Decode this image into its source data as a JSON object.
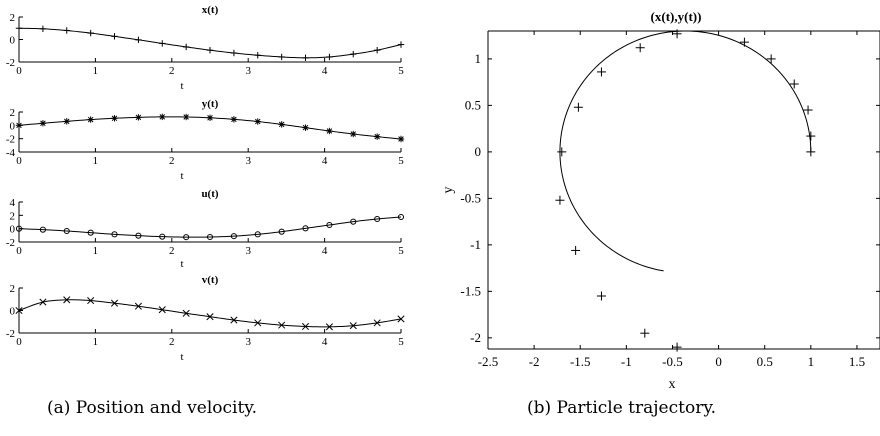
{
  "captions": {
    "left": "(a) Position and velocity.",
    "right": "(b) Particle trajectory."
  },
  "chart_data": [
    {
      "type": "line",
      "title": "x(t)",
      "xlabel": "t",
      "ylabel": "",
      "xlim": [
        0,
        5
      ],
      "ylim": [
        -2,
        2
      ],
      "xticks": [
        0,
        1,
        2,
        3,
        4,
        5
      ],
      "yticks": [
        -2,
        0,
        2
      ],
      "marker": "plus",
      "x": [
        0,
        0.313,
        0.625,
        0.938,
        1.25,
        1.563,
        1.875,
        2.188,
        2.5,
        2.813,
        3.125,
        3.438,
        3.75,
        4.063,
        4.375,
        4.688,
        5.0
      ],
      "values": [
        1.0,
        0.95,
        0.8,
        0.57,
        0.28,
        -0.03,
        -0.35,
        -0.66,
        -0.95,
        -1.2,
        -1.4,
        -1.55,
        -1.63,
        -1.55,
        -1.3,
        -0.95,
        -0.45
      ]
    },
    {
      "type": "line",
      "title": "y(t)",
      "xlabel": "t",
      "ylabel": "",
      "xlim": [
        0,
        5
      ],
      "ylim": [
        -4,
        2
      ],
      "xticks": [
        0,
        1,
        2,
        3,
        4,
        5
      ],
      "yticks": [
        -4,
        -2,
        0,
        2
      ],
      "marker": "star",
      "x": [
        0,
        0.313,
        0.625,
        0.938,
        1.25,
        1.563,
        1.875,
        2.188,
        2.5,
        2.813,
        3.125,
        3.438,
        3.75,
        4.063,
        4.375,
        4.688,
        5.0
      ],
      "values": [
        0.0,
        0.31,
        0.6,
        0.86,
        1.06,
        1.2,
        1.27,
        1.25,
        1.13,
        0.9,
        0.57,
        0.14,
        -0.35,
        -0.85,
        -1.3,
        -1.7,
        -2.05
      ]
    },
    {
      "type": "line",
      "title": "u(t)",
      "xlabel": "t",
      "ylabel": "",
      "xlim": [
        0,
        5
      ],
      "ylim": [
        -2,
        4
      ],
      "xticks": [
        0,
        1,
        2,
        3,
        4,
        5
      ],
      "yticks": [
        -2,
        0,
        2,
        4
      ],
      "marker": "circle",
      "x": [
        0,
        0.313,
        0.625,
        0.938,
        1.25,
        1.563,
        1.875,
        2.188,
        2.5,
        2.813,
        3.125,
        3.438,
        3.75,
        4.063,
        4.375,
        4.688,
        5.0
      ],
      "values": [
        0.0,
        -0.15,
        -0.35,
        -0.6,
        -0.85,
        -1.05,
        -1.2,
        -1.27,
        -1.25,
        -1.12,
        -0.85,
        -0.45,
        0.05,
        0.55,
        1.05,
        1.45,
        1.75
      ]
    },
    {
      "type": "line",
      "title": "v(t)",
      "xlabel": "t",
      "ylabel": "",
      "xlim": [
        0,
        5
      ],
      "ylim": [
        -2,
        2
      ],
      "xticks": [
        0,
        1,
        2,
        3,
        4,
        5
      ],
      "yticks": [
        -2,
        0,
        2
      ],
      "marker": "cross",
      "x": [
        0,
        0.313,
        0.625,
        0.938,
        1.25,
        1.563,
        1.875,
        2.188,
        2.5,
        2.813,
        3.125,
        3.438,
        3.75,
        4.063,
        4.375,
        4.688,
        5.0
      ],
      "values": [
        0.0,
        0.75,
        0.95,
        0.88,
        0.65,
        0.38,
        0.07,
        -0.25,
        -0.55,
        -0.85,
        -1.1,
        -1.3,
        -1.42,
        -1.45,
        -1.35,
        -1.1,
        -0.75
      ]
    },
    {
      "type": "line",
      "title": "(x(t),y(t))",
      "xlabel": "x",
      "ylabel": "y",
      "xlim": [
        -2.5,
        1.75
      ],
      "ylim": [
        -2.12,
        1.3
      ],
      "xticks": [
        -2.5,
        -2,
        -1.5,
        -1,
        -0.5,
        0,
        0.5,
        1,
        1.5
      ],
      "yticks": [
        -2,
        -1.5,
        -1,
        -0.5,
        0,
        0.5,
        1
      ],
      "marker": "plus",
      "curve": {
        "center": [
          -0.36,
          0.0
        ],
        "radius_x": 1.36,
        "radius_y": 1.3,
        "theta_start_deg": 0,
        "theta_end_deg": 260
      },
      "x": [
        1.0,
        1.0,
        0.97,
        0.82,
        0.57,
        0.28,
        -0.45,
        -0.85,
        -1.27,
        -1.52,
        -1.7,
        -1.72,
        -1.55,
        -1.27,
        -0.8,
        -0.45
      ],
      "values": [
        0.0,
        0.17,
        0.45,
        0.73,
        1.0,
        1.18,
        1.27,
        1.12,
        0.86,
        0.48,
        0.0,
        -0.52,
        -1.06,
        -1.55,
        -1.95,
        -2.1
      ]
    }
  ]
}
